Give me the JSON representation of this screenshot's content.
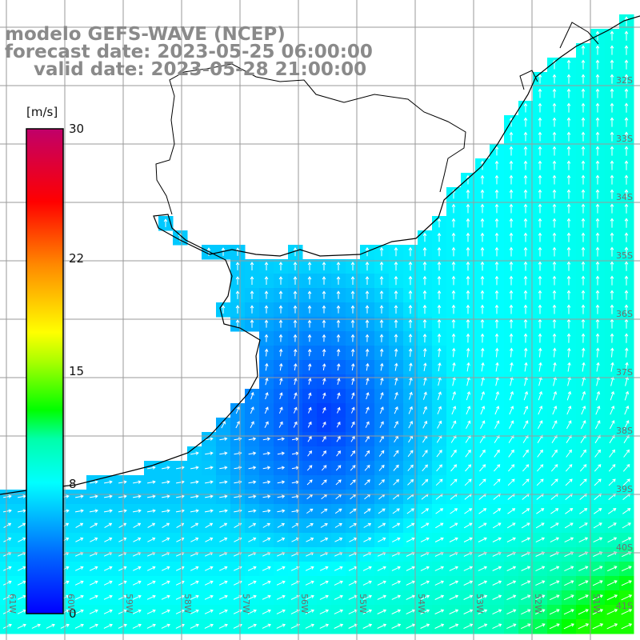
{
  "titles": {
    "line1": "modelo GEFS-WAVE (NCEP)",
    "line2": "forecast date: 2023-05-25 06:00:00",
    "line3": "valid date: 2023-05-28 21:00:00"
  },
  "legend": {
    "unit": "[m/s]",
    "range": [
      0,
      30
    ],
    "ticks": [
      {
        "value": 30,
        "label": "30"
      },
      {
        "value": 22,
        "label": "22"
      },
      {
        "value": 15,
        "label": "15"
      },
      {
        "value": 8,
        "label": "8"
      },
      {
        "value": 0,
        "label": "0"
      }
    ],
    "colors": [
      "#0000ff",
      "#0088ff",
      "#00ffff",
      "#00ff88",
      "#00ff00",
      "#88ff00",
      "#ffff00",
      "#ff8800",
      "#ff0000",
      "#c0006a"
    ]
  },
  "map": {
    "land_color": "#ffffff",
    "coast_color": "#000000",
    "grid_color": "#9a9a9a",
    "arrow_color": "#ffffff",
    "lon_labels": [
      "61W",
      "60W",
      "59W",
      "58W",
      "57W",
      "56W",
      "55W",
      "54W",
      "53W",
      "52W",
      "51W"
    ],
    "lat_labels": [
      "32S",
      "33S",
      "34S",
      "35S",
      "36S",
      "37S",
      "38S",
      "39S",
      "40S",
      "41S"
    ]
  }
}
